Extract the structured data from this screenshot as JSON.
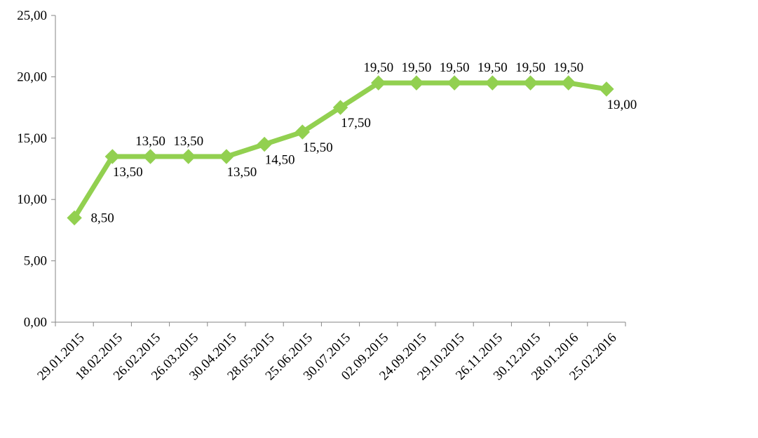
{
  "chart_data": {
    "type": "line",
    "title": "",
    "xlabel": "",
    "ylabel": "",
    "categories": [
      "29.01.2015",
      "18.02.2015",
      "26.02.2015",
      "26.03.2015",
      "30.04.2015",
      "28.05.2015",
      "25.06.2015",
      "30.07.2015",
      "02.09.2015",
      "24.09.2015",
      "29.10.2015",
      "26.11.2015",
      "30.12.2015",
      "28.01.2016",
      "25.02.2016"
    ],
    "values": [
      8.5,
      13.5,
      13.5,
      13.5,
      13.5,
      14.5,
      15.5,
      17.5,
      19.5,
      19.5,
      19.5,
      19.5,
      19.5,
      19.5,
      19.0
    ],
    "data_labels": [
      "8,50",
      "13,50",
      "13,50",
      "13,50",
      "13,50",
      "14,50",
      "15,50",
      "17,50",
      "19,50",
      "19,50",
      "19,50",
      "19,50",
      "19,50",
      "19,50",
      "19,00"
    ],
    "ylim": [
      0,
      25
    ],
    "y_ticks": [
      0,
      5,
      10,
      15,
      20,
      25
    ],
    "y_tick_labels": [
      "0,00",
      "5,00",
      "10,00",
      "15,00",
      "20,00",
      "25,00"
    ],
    "grid": false,
    "legend": "none",
    "marker": "diamond",
    "colors": {
      "line": "#92D050",
      "marker": "#92D050",
      "axis": "#868686"
    }
  }
}
